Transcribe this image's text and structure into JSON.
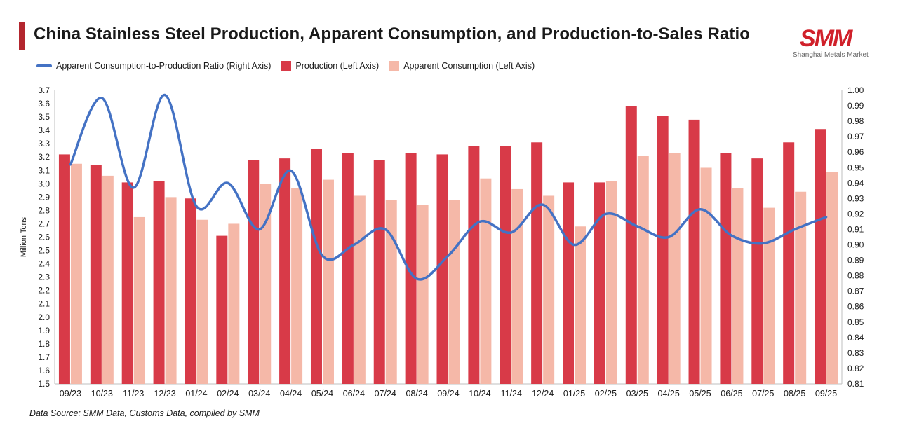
{
  "header": {
    "title": "China Stainless Steel Production, Apparent Consumption, and Production-to-Sales Ratio",
    "logo_text": "SMM",
    "logo_subtitle": "Shanghai Metals Market"
  },
  "footer": {
    "source": "Data Source: SMM Data, Customs Data, compiled by SMM"
  },
  "colors": {
    "accent": "#b3262e",
    "production": "#d83a48",
    "consumption": "#f5b8a8",
    "ratio_line": "#4472c4"
  },
  "chart_data": {
    "type": "bar",
    "title": "China Stainless Steel Production, Apparent Consumption, and Production-to-Sales Ratio",
    "categories": [
      "09/23",
      "10/23",
      "11/23",
      "12/23",
      "01/24",
      "02/24",
      "03/24",
      "04/24",
      "05/24",
      "06/24",
      "07/24",
      "08/24",
      "09/24",
      "10/24",
      "11/24",
      "12/24",
      "01/25",
      "02/25",
      "03/25",
      "04/25",
      "05/25",
      "06/25",
      "07/25",
      "08/25",
      "09/25"
    ],
    "series": [
      {
        "name": "Production (Left Axis)",
        "kind": "bar",
        "axis": "left",
        "values": [
          3.22,
          3.14,
          3.01,
          3.02,
          2.89,
          2.61,
          3.18,
          3.19,
          3.26,
          3.23,
          3.18,
          3.23,
          3.22,
          3.28,
          3.28,
          3.31,
          3.01,
          3.01,
          3.58,
          3.51,
          3.48,
          3.23,
          3.19,
          3.31,
          3.41
        ]
      },
      {
        "name": "Apparent Consumption (Left Axis)",
        "kind": "bar",
        "axis": "left",
        "values": [
          3.15,
          3.06,
          2.75,
          2.9,
          2.73,
          2.7,
          3.0,
          2.97,
          3.03,
          2.91,
          2.88,
          2.84,
          2.88,
          3.04,
          2.96,
          2.91,
          2.68,
          3.02,
          3.21,
          3.23,
          3.12,
          2.97,
          2.82,
          2.94,
          3.09
        ]
      },
      {
        "name": "Apparent Consumption-to-Production Ratio (Right Axis)",
        "kind": "line",
        "axis": "right",
        "values": [
          0.952,
          0.995,
          0.937,
          0.997,
          0.925,
          0.94,
          0.91,
          0.948,
          0.893,
          0.9,
          0.91,
          0.878,
          0.893,
          0.915,
          0.908,
          0.926,
          0.9,
          0.92,
          0.912,
          0.905,
          0.923,
          0.906,
          0.901,
          0.91,
          0.918
        ]
      }
    ],
    "ylabel": "Million Tons",
    "ylim": [
      1.5,
      3.7
    ],
    "ytick_step": 0.1,
    "y2lim": [
      0.81,
      1.0
    ],
    "y2tick_step": 0.01,
    "legend_position": "top-left",
    "grid": false
  }
}
